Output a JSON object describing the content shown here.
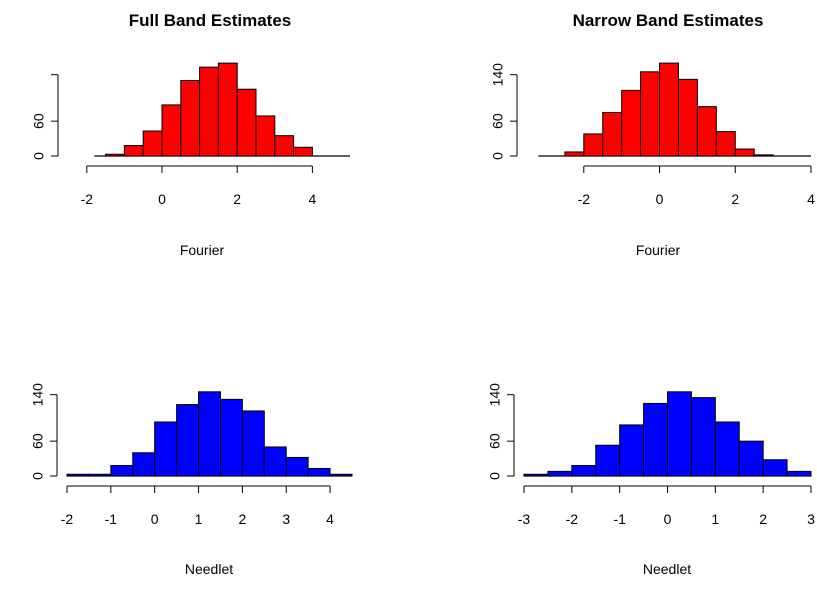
{
  "chart_data": [
    {
      "type": "bar",
      "title": "Full Band Estimates",
      "xlabel": "Fourier",
      "ylabel": "",
      "bar_color": "#ff0000",
      "bin_width": 0.5,
      "bins": [
        -1.5,
        -1.0,
        -0.5,
        0.0,
        0.5,
        1.0,
        1.5,
        2.0,
        2.5,
        3.0,
        3.5
      ],
      "values": [
        3,
        18,
        43,
        88,
        130,
        153,
        160,
        115,
        69,
        35,
        15
      ],
      "xlim": [
        -2.5,
        5
      ],
      "ylim": [
        0,
        155
      ],
      "x_ticks": [
        -2,
        0,
        2,
        4
      ],
      "x_tick_labels": [
        "-2",
        "0",
        "2",
        "4"
      ],
      "y_ticks": [
        0,
        60
      ],
      "y_tick_labels": [
        "0",
        "60"
      ],
      "y_axis_top": 140,
      "baseline_range": [
        -1.8,
        5
      ]
    },
    {
      "type": "bar",
      "title": "Narrow Band Estimates",
      "xlabel": "Fourier",
      "ylabel": "",
      "bar_color": "#ff0000",
      "bin_width": 0.5,
      "bins": [
        -2.5,
        -2.0,
        -1.5,
        -1.0,
        -0.5,
        0.0,
        0.5,
        1.0,
        1.5,
        2.0,
        2.5,
        3.0,
        3.5
      ],
      "values": [
        7,
        38,
        75,
        113,
        145,
        160,
        132,
        85,
        42,
        12,
        2,
        0,
        0
      ],
      "xlim": [
        -3.5,
        4
      ],
      "ylim": [
        0,
        155
      ],
      "x_ticks": [
        -2,
        0,
        2,
        4
      ],
      "x_tick_labels": [
        "-2",
        "0",
        "2",
        "4"
      ],
      "y_ticks": [
        0,
        60,
        140
      ],
      "y_tick_labels": [
        "0",
        "60",
        "140"
      ],
      "y_axis_top": 140,
      "baseline_range": [
        -3.2,
        4
      ]
    },
    {
      "type": "bar",
      "title": "",
      "xlabel": "Needlet",
      "ylabel": "",
      "bar_color": "#0000ff",
      "bin_width": 0.5,
      "bins": [
        -2.0,
        -1.5,
        -1.0,
        -0.5,
        0.0,
        0.5,
        1.0,
        1.5,
        2.0,
        2.5,
        3.0,
        3.5,
        4.0
      ],
      "values": [
        3,
        3,
        18,
        40,
        93,
        123,
        145,
        132,
        112,
        50,
        32,
        13,
        3
      ],
      "xlim": [
        -2,
        4.5
      ],
      "ylim": [
        0,
        155
      ],
      "x_ticks": [
        -2,
        -1,
        0,
        1,
        2,
        3,
        4
      ],
      "x_tick_labels": [
        "-2",
        "-1",
        "0",
        "1",
        "2",
        "3",
        "4"
      ],
      "y_ticks": [
        0,
        60,
        140
      ],
      "y_tick_labels": [
        "0",
        "60",
        "140"
      ],
      "y_axis_top": 140,
      "baseline_range": [
        -2,
        4.5
      ]
    },
    {
      "type": "bar",
      "title": "",
      "xlabel": "Needlet",
      "ylabel": "",
      "bar_color": "#0000ff",
      "bin_width": 0.5,
      "bins": [
        -3.0,
        -2.5,
        -2.0,
        -1.5,
        -1.0,
        -0.5,
        0.0,
        0.5,
        1.0,
        1.5,
        2.0,
        2.5
      ],
      "values": [
        3,
        8,
        18,
        53,
        88,
        125,
        145,
        135,
        93,
        60,
        28,
        8
      ],
      "xlim": [
        -3,
        3
      ],
      "ylim": [
        0,
        155
      ],
      "x_ticks": [
        -3,
        -2,
        -1,
        0,
        1,
        2,
        3
      ],
      "x_tick_labels": [
        "-3",
        "-2",
        "-1",
        "0",
        "1",
        "2",
        "3"
      ],
      "y_ticks": [
        0,
        60,
        140
      ],
      "y_tick_labels": [
        "0",
        "60",
        "140"
      ],
      "y_axis_top": 140,
      "baseline_range": [
        -3,
        3
      ]
    }
  ]
}
